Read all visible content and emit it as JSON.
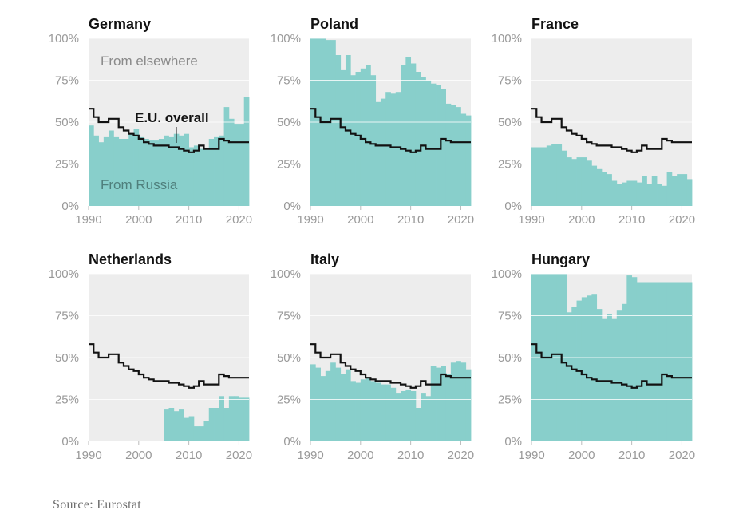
{
  "chart_data": [
    {
      "type": "area",
      "title": "Germany",
      "x": [
        1990,
        1991,
        1992,
        1993,
        1994,
        1995,
        1996,
        1997,
        1998,
        1999,
        2000,
        2001,
        2002,
        2003,
        2004,
        2005,
        2006,
        2007,
        2008,
        2009,
        2010,
        2011,
        2012,
        2013,
        2014,
        2015,
        2016,
        2017,
        2018,
        2019,
        2020,
        2021
      ],
      "russia_share": [
        48,
        42,
        38,
        41,
        45,
        41,
        40,
        40,
        43,
        46,
        41,
        40,
        39,
        39,
        40,
        42,
        41,
        43,
        42,
        43,
        35,
        36,
        34,
        34,
        40,
        41,
        42,
        59,
        52,
        49,
        49,
        65
      ],
      "eu_overall": [
        58,
        53,
        50,
        50,
        52,
        52,
        47,
        45,
        43,
        42,
        40,
        38,
        37,
        36,
        36,
        36,
        35,
        35,
        34,
        33,
        32,
        33,
        36,
        34,
        34,
        34,
        40,
        39,
        38,
        38,
        38,
        38
      ],
      "ylim": [
        0,
        100
      ],
      "yticks": [
        "0%",
        "25%",
        "50%",
        "75%",
        "100%"
      ],
      "xticks": [
        "1990",
        "2000",
        "2010",
        "2020"
      ],
      "annotations": {
        "elsewhere": "From elsewhere",
        "russia": "From Russia",
        "eu": "E.U. overall"
      }
    },
    {
      "type": "area",
      "title": "Poland",
      "x": [
        1990,
        1991,
        1992,
        1993,
        1994,
        1995,
        1996,
        1997,
        1998,
        1999,
        2000,
        2001,
        2002,
        2003,
        2004,
        2005,
        2006,
        2007,
        2008,
        2009,
        2010,
        2011,
        2012,
        2013,
        2014,
        2015,
        2016,
        2017,
        2018,
        2019,
        2020,
        2021
      ],
      "russia_share": [
        100,
        100,
        100,
        99,
        99,
        90,
        81,
        90,
        78,
        80,
        82,
        84,
        78,
        62,
        64,
        68,
        67,
        68,
        84,
        89,
        85,
        80,
        77,
        75,
        73,
        72,
        70,
        61,
        60,
        59,
        55,
        54
      ],
      "eu_overall": [
        58,
        53,
        50,
        50,
        52,
        52,
        47,
        45,
        43,
        42,
        40,
        38,
        37,
        36,
        36,
        36,
        35,
        35,
        34,
        33,
        32,
        33,
        36,
        34,
        34,
        34,
        40,
        39,
        38,
        38,
        38,
        38
      ],
      "ylim": [
        0,
        100
      ],
      "yticks": [
        "0%",
        "25%",
        "50%",
        "75%",
        "100%"
      ],
      "xticks": [
        "1990",
        "2000",
        "2010",
        "2020"
      ]
    },
    {
      "type": "area",
      "title": "France",
      "x": [
        1990,
        1991,
        1992,
        1993,
        1994,
        1995,
        1996,
        1997,
        1998,
        1999,
        2000,
        2001,
        2002,
        2003,
        2004,
        2005,
        2006,
        2007,
        2008,
        2009,
        2010,
        2011,
        2012,
        2013,
        2014,
        2015,
        2016,
        2017,
        2018,
        2019,
        2020,
        2021
      ],
      "russia_share": [
        35,
        35,
        35,
        36,
        37,
        37,
        33,
        29,
        28,
        29,
        29,
        27,
        24,
        22,
        20,
        19,
        15,
        13,
        14,
        15,
        15,
        14,
        18,
        13,
        18,
        13,
        12,
        20,
        18,
        19,
        19,
        16
      ],
      "eu_overall": [
        58,
        53,
        50,
        50,
        52,
        52,
        47,
        45,
        43,
        42,
        40,
        38,
        37,
        36,
        36,
        36,
        35,
        35,
        34,
        33,
        32,
        33,
        36,
        34,
        34,
        34,
        40,
        39,
        38,
        38,
        38,
        38
      ],
      "ylim": [
        0,
        100
      ],
      "yticks": [
        "0%",
        "25%",
        "50%",
        "75%",
        "100%"
      ],
      "xticks": [
        "1990",
        "2000",
        "2010",
        "2020"
      ]
    },
    {
      "type": "area",
      "title": "Netherlands",
      "x": [
        1990,
        1991,
        1992,
        1993,
        1994,
        1995,
        1996,
        1997,
        1998,
        1999,
        2000,
        2001,
        2002,
        2003,
        2004,
        2005,
        2006,
        2007,
        2008,
        2009,
        2010,
        2011,
        2012,
        2013,
        2014,
        2015,
        2016,
        2017,
        2018,
        2019,
        2020,
        2021
      ],
      "russia_share": [
        0,
        0,
        0,
        0,
        0,
        0,
        0,
        0,
        0,
        0,
        0,
        0,
        0,
        0,
        0,
        19,
        20,
        18,
        19,
        14,
        15,
        9,
        9,
        12,
        20,
        20,
        27,
        20,
        27,
        27,
        26,
        26
      ],
      "eu_overall": [
        58,
        53,
        50,
        50,
        52,
        52,
        47,
        45,
        43,
        42,
        40,
        38,
        37,
        36,
        36,
        36,
        35,
        35,
        34,
        33,
        32,
        33,
        36,
        34,
        34,
        34,
        40,
        39,
        38,
        38,
        38,
        38
      ],
      "ylim": [
        0,
        100
      ],
      "yticks": [
        "0%",
        "25%",
        "50%",
        "75%",
        "100%"
      ],
      "xticks": [
        "1990",
        "2000",
        "2010",
        "2020"
      ]
    },
    {
      "type": "area",
      "title": "Italy",
      "x": [
        1990,
        1991,
        1992,
        1993,
        1994,
        1995,
        1996,
        1997,
        1998,
        1999,
        2000,
        2001,
        2002,
        2003,
        2004,
        2005,
        2006,
        2007,
        2008,
        2009,
        2010,
        2011,
        2012,
        2013,
        2014,
        2015,
        2016,
        2017,
        2018,
        2019,
        2020,
        2021
      ],
      "russia_share": [
        46,
        44,
        39,
        42,
        47,
        44,
        40,
        43,
        36,
        35,
        37,
        38,
        36,
        35,
        34,
        34,
        32,
        29,
        30,
        31,
        30,
        20,
        29,
        27,
        45,
        44,
        45,
        40,
        47,
        48,
        47,
        43
      ],
      "eu_overall": [
        58,
        53,
        50,
        50,
        52,
        52,
        47,
        45,
        43,
        42,
        40,
        38,
        37,
        36,
        36,
        36,
        35,
        35,
        34,
        33,
        32,
        33,
        36,
        34,
        34,
        34,
        40,
        39,
        38,
        38,
        38,
        38
      ],
      "ylim": [
        0,
        100
      ],
      "yticks": [
        "0%",
        "25%",
        "50%",
        "75%",
        "100%"
      ],
      "xticks": [
        "1990",
        "2000",
        "2010",
        "2020"
      ]
    },
    {
      "type": "area",
      "title": "Hungary",
      "x": [
        1990,
        1991,
        1992,
        1993,
        1994,
        1995,
        1996,
        1997,
        1998,
        1999,
        2000,
        2001,
        2002,
        2003,
        2004,
        2005,
        2006,
        2007,
        2008,
        2009,
        2010,
        2011,
        2012,
        2013,
        2014,
        2015,
        2016,
        2017,
        2018,
        2019,
        2020,
        2021
      ],
      "russia_share": [
        100,
        100,
        100,
        100,
        100,
        100,
        100,
        77,
        80,
        84,
        86,
        87,
        88,
        79,
        73,
        76,
        73,
        78,
        82,
        99,
        98,
        95,
        95,
        95,
        95,
        95,
        95,
        95,
        95,
        95,
        95,
        95
      ],
      "eu_overall": [
        58,
        53,
        50,
        50,
        52,
        52,
        47,
        45,
        43,
        42,
        40,
        38,
        37,
        36,
        36,
        36,
        35,
        35,
        34,
        33,
        32,
        33,
        36,
        34,
        34,
        34,
        40,
        39,
        38,
        38,
        38,
        38
      ],
      "ylim": [
        0,
        100
      ],
      "yticks": [
        "0%",
        "25%",
        "50%",
        "75%",
        "100%"
      ],
      "xticks": [
        "1990",
        "2000",
        "2010",
        "2020"
      ]
    }
  ],
  "colors": {
    "russia": "#88cfcb",
    "background": "#ededed",
    "grid": "#ffffff",
    "eu_line": "#121212"
  },
  "source": "Source: Eurostat"
}
